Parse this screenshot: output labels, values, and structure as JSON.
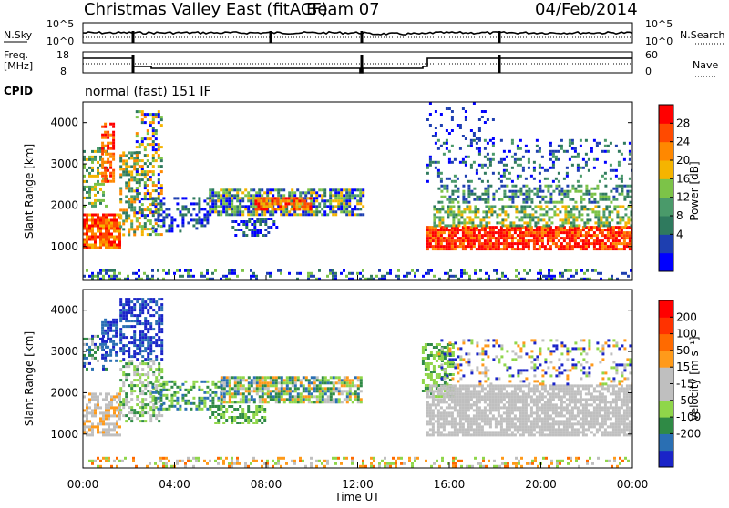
{
  "header": {
    "station": "Christmas Valley East (fitACF)",
    "beam": "Beam 07",
    "date": "04/Feb/2014"
  },
  "top_panels": {
    "nsky_label": "N.Sky",
    "nsky_ticks": [
      "10^5",
      "10^0"
    ],
    "nsearch_label": "N.Search",
    "nsearch_ticks": [
      "10^5",
      "10^0"
    ],
    "freq_label_1": "Freq.",
    "freq_label_2": "[MHz]",
    "freq_ticks": [
      "18",
      "8"
    ],
    "nave_label": "Nave",
    "nave_ticks": [
      "60",
      "0"
    ],
    "cpid_label": "CPID",
    "cpid_text": "normal (fast) 151 IF"
  },
  "colors": {
    "power_scale": [
      "#0000ff",
      "#1e3fb0",
      "#2f7a5e",
      "#4a9a6a",
      "#7cc348",
      "#f5b400",
      "#ff8800",
      "#ff4a00",
      "#ff0000"
    ],
    "velocity_scale": [
      "#1a24c8",
      "#2a6fb3",
      "#2f8a45",
      "#8fd64a",
      "#bfbfbf",
      "#bfbfbf",
      "#ff9a1a",
      "#ff6a00",
      "#ff3200",
      "#ff0000"
    ]
  },
  "chart_data": [
    {
      "type": "heatmap",
      "name": "power",
      "xlabel": "",
      "ylabel": "Slant Range [km]",
      "ylim": [
        180,
        4500
      ],
      "yticks": [
        "1000",
        "2000",
        "3000",
        "4000"
      ],
      "colorbar_label": "Power [dB]",
      "colorbar_ticks": [
        "28",
        "24",
        "20",
        "16",
        "12",
        "8",
        "4"
      ],
      "x_ticks": [
        "00:00",
        "04:00",
        "08:00",
        "12:00",
        "16:00",
        "20:00",
        "00:00"
      ]
    },
    {
      "type": "heatmap",
      "name": "velocity",
      "xlabel": "Time UT",
      "ylabel": "Slant Range [km]",
      "ylim": [
        180,
        4500
      ],
      "yticks": [
        "1000",
        "2000",
        "3000",
        "4000"
      ],
      "colorbar_label": "Velocity [m s⁻¹]",
      "colorbar_ticks": [
        "200",
        "100",
        "50",
        "15",
        "-15",
        "-50",
        "-100",
        "-200"
      ],
      "x_ticks": [
        "00:00",
        "04:00",
        "08:00",
        "12:00",
        "16:00",
        "20:00",
        "00:00"
      ]
    }
  ]
}
